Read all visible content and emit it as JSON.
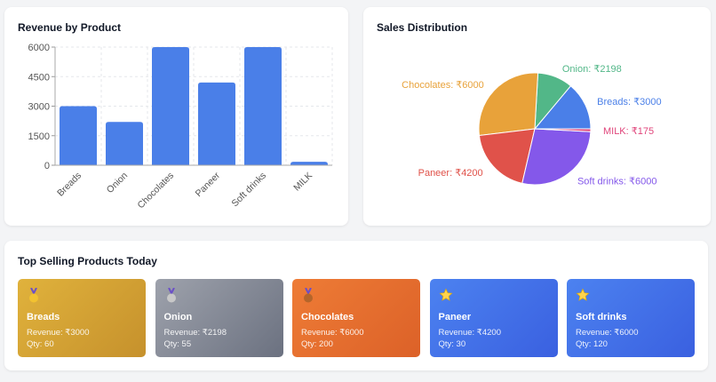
{
  "chart_data": [
    {
      "type": "bar",
      "title": "Revenue by Product",
      "categories": [
        "Breads",
        "Onion",
        "Chocolates",
        "Paneer",
        "Soft drinks",
        "MILK"
      ],
      "values": [
        3000,
        2198,
        6000,
        4200,
        6000,
        175
      ],
      "ylim": [
        0,
        6000
      ],
      "yticks": [
        "0",
        "1500",
        "3000",
        "4500",
        "6000"
      ],
      "grid": true,
      "color": "#4a7fe8"
    },
    {
      "type": "pie",
      "title": "Sales Distribution",
      "categories": [
        "Breads",
        "Onion",
        "Chocolates",
        "Paneer",
        "Soft drinks",
        "MILK"
      ],
      "values": [
        3000,
        2198,
        6000,
        4200,
        6000,
        175
      ],
      "labels": [
        "Breads: ₹3000",
        "Onion: ₹2198",
        "Chocolates: ₹6000",
        "Paneer: ₹4200",
        "Soft drinks: ₹6000",
        "MILK: ₹175"
      ],
      "colors": [
        "#4a7fe8",
        "#52b788",
        "#e8a23a",
        "#e0524a",
        "#8458ea",
        "#e0457b"
      ]
    }
  ],
  "top_selling": {
    "title": "Top Selling Products Today",
    "items": [
      {
        "name": "Breads",
        "revenue": "Revenue: ₹3000",
        "qty": "Qty: 60",
        "icon": "gold-medal-icon",
        "bg": [
          "#e0b23c",
          "#c6912c"
        ]
      },
      {
        "name": "Onion",
        "revenue": "Revenue: ₹2198",
        "qty": "Qty: 55",
        "icon": "silver-medal-icon",
        "bg": [
          "#9ea2ac",
          "#6b7180"
        ]
      },
      {
        "name": "Chocolates",
        "revenue": "Revenue: ₹6000",
        "qty": "Qty: 200",
        "icon": "bronze-medal-icon",
        "bg": [
          "#ee7c36",
          "#dc6128"
        ]
      },
      {
        "name": "Paneer",
        "revenue": "Revenue: ₹4200",
        "qty": "Qty: 30",
        "icon": "star-icon",
        "bg": [
          "#4c82f0",
          "#3a60e0"
        ]
      },
      {
        "name": "Soft drinks",
        "revenue": "Revenue: ₹6000",
        "qty": "Qty: 120",
        "icon": "star-icon",
        "bg": [
          "#4c82f0",
          "#3a60e0"
        ]
      }
    ]
  }
}
